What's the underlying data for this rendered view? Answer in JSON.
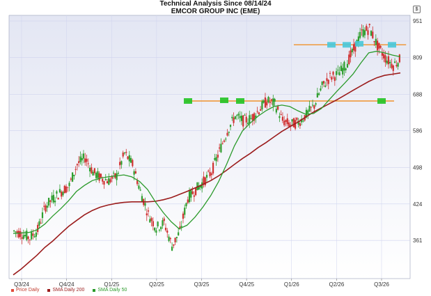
{
  "header": {
    "title": "Technical Analysis Since 08/14/24",
    "subtitle": "EMCOR GROUP INC (EME)",
    "price_icon": "$"
  },
  "legend": {
    "price": "Price Daily",
    "sma200": "SMA Daily 200",
    "sma50": "SMA Daily 50"
  },
  "colors": {
    "up": "#2e9e2e",
    "down": "#d03030",
    "sma50": "#2a9a2a",
    "sma200": "#9b1c1c",
    "level": "#f0922b",
    "marker_green": "#22c322",
    "marker_cyan": "#48c8d8",
    "grid": "#cfd3ee",
    "plot_bg_top": "#e6e9f4",
    "plot_bg_bottom": "#ffffff"
  },
  "chart_data": {
    "type": "line",
    "title": "Technical Analysis Since 08/14/24",
    "subtitle": "EMCOR GROUP INC (EME)",
    "y_scale": "log",
    "ylim": [
      305,
      975
    ],
    "y_ticks": [
      951,
      809,
      688,
      586,
      498,
      424,
      361
    ],
    "x_ticks": [
      "Q3/24",
      "Q4/24",
      "Q1/25",
      "Q2/25",
      "Q3/25",
      "Q4/25",
      "Q1/26",
      "Q2/26",
      "Q3/26"
    ],
    "x": [
      0,
      15,
      30,
      45,
      60,
      75,
      90,
      105,
      120,
      135,
      150,
      165,
      180,
      195,
      210,
      225,
      240,
      255,
      270,
      285,
      300,
      315,
      330,
      345,
      360,
      375,
      390,
      405,
      420,
      435,
      450,
      465,
      480,
      495,
      510,
      525,
      540,
      555,
      570,
      585,
      600,
      615,
      630,
      645,
      660,
      675,
      690,
      705,
      720,
      735
    ],
    "series": [
      {
        "name": "Price Daily",
        "values": [
          376,
          372,
          365,
          378,
          420,
          435,
          448,
          460,
          505,
          520,
          488,
          475,
          470,
          480,
          530,
          505,
          448,
          405,
          382,
          390,
          352,
          375,
          435,
          452,
          468,
          488,
          535,
          585,
          625,
          612,
          618,
          642,
          668,
          660,
          612,
          602,
          608,
          628,
          655,
          712,
          742,
          752,
          782,
          838,
          902,
          920,
          852,
          808,
          782,
          806
        ]
      },
      {
        "name": "SMA Daily 50",
        "values": [
          372,
          373,
          374,
          378,
          388,
          402,
          415,
          430,
          448,
          460,
          470,
          475,
          478,
          480,
          482,
          478,
          468,
          452,
          428,
          408,
          392,
          380,
          386,
          400,
          418,
          440,
          468,
          505,
          548,
          585,
          606,
          625,
          640,
          652,
          656,
          652,
          640,
          630,
          632,
          646,
          672,
          698,
          724,
          752,
          790,
          826,
          832,
          826,
          818,
          812
        ]
      },
      {
        "name": "SMA Daily 200",
        "values": [
          310,
          318,
          328,
          338,
          350,
          360,
          372,
          384,
          394,
          404,
          412,
          418,
          422,
          425,
          427,
          428,
          428,
          428,
          429,
          432,
          436,
          442,
          448,
          455,
          462,
          470,
          480,
          492,
          505,
          518,
          530,
          544,
          556,
          570,
          584,
          596,
          608,
          622,
          636,
          648,
          660,
          672,
          686,
          700,
          714,
          728,
          740,
          748,
          752,
          756
        ]
      }
    ],
    "levels": [
      {
        "value": 668
      },
      {
        "value": 856
      }
    ]
  }
}
